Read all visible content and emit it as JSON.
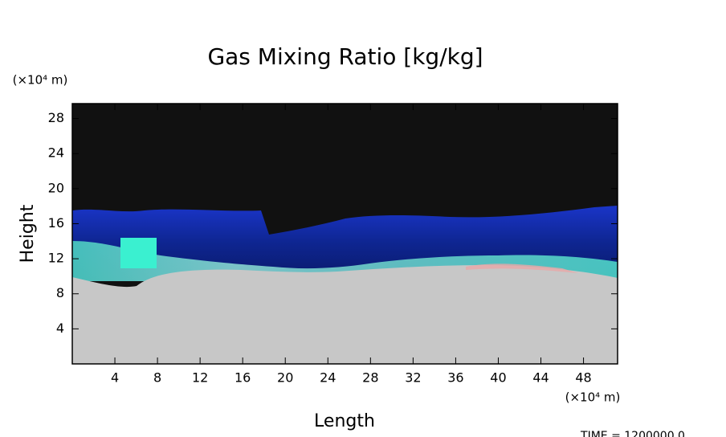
{
  "chart_data": {
    "type": "image",
    "title": "Gas Mixing Ratio [kg/kg]",
    "x_label": "Length",
    "y_label": "Height",
    "x_unit": "(×10⁴ m)",
    "y_unit": "(×10⁴ m)",
    "time_label": "TIME = 1200000.0",
    "xlim": [
      0,
      51.2
    ],
    "ylim": [
      0,
      29.7
    ],
    "xticks": [
      4,
      8,
      12,
      16,
      20,
      24,
      28,
      32,
      36,
      40,
      44,
      48
    ],
    "yticks": [
      4,
      8,
      12,
      16,
      20,
      24,
      28
    ]
  }
}
